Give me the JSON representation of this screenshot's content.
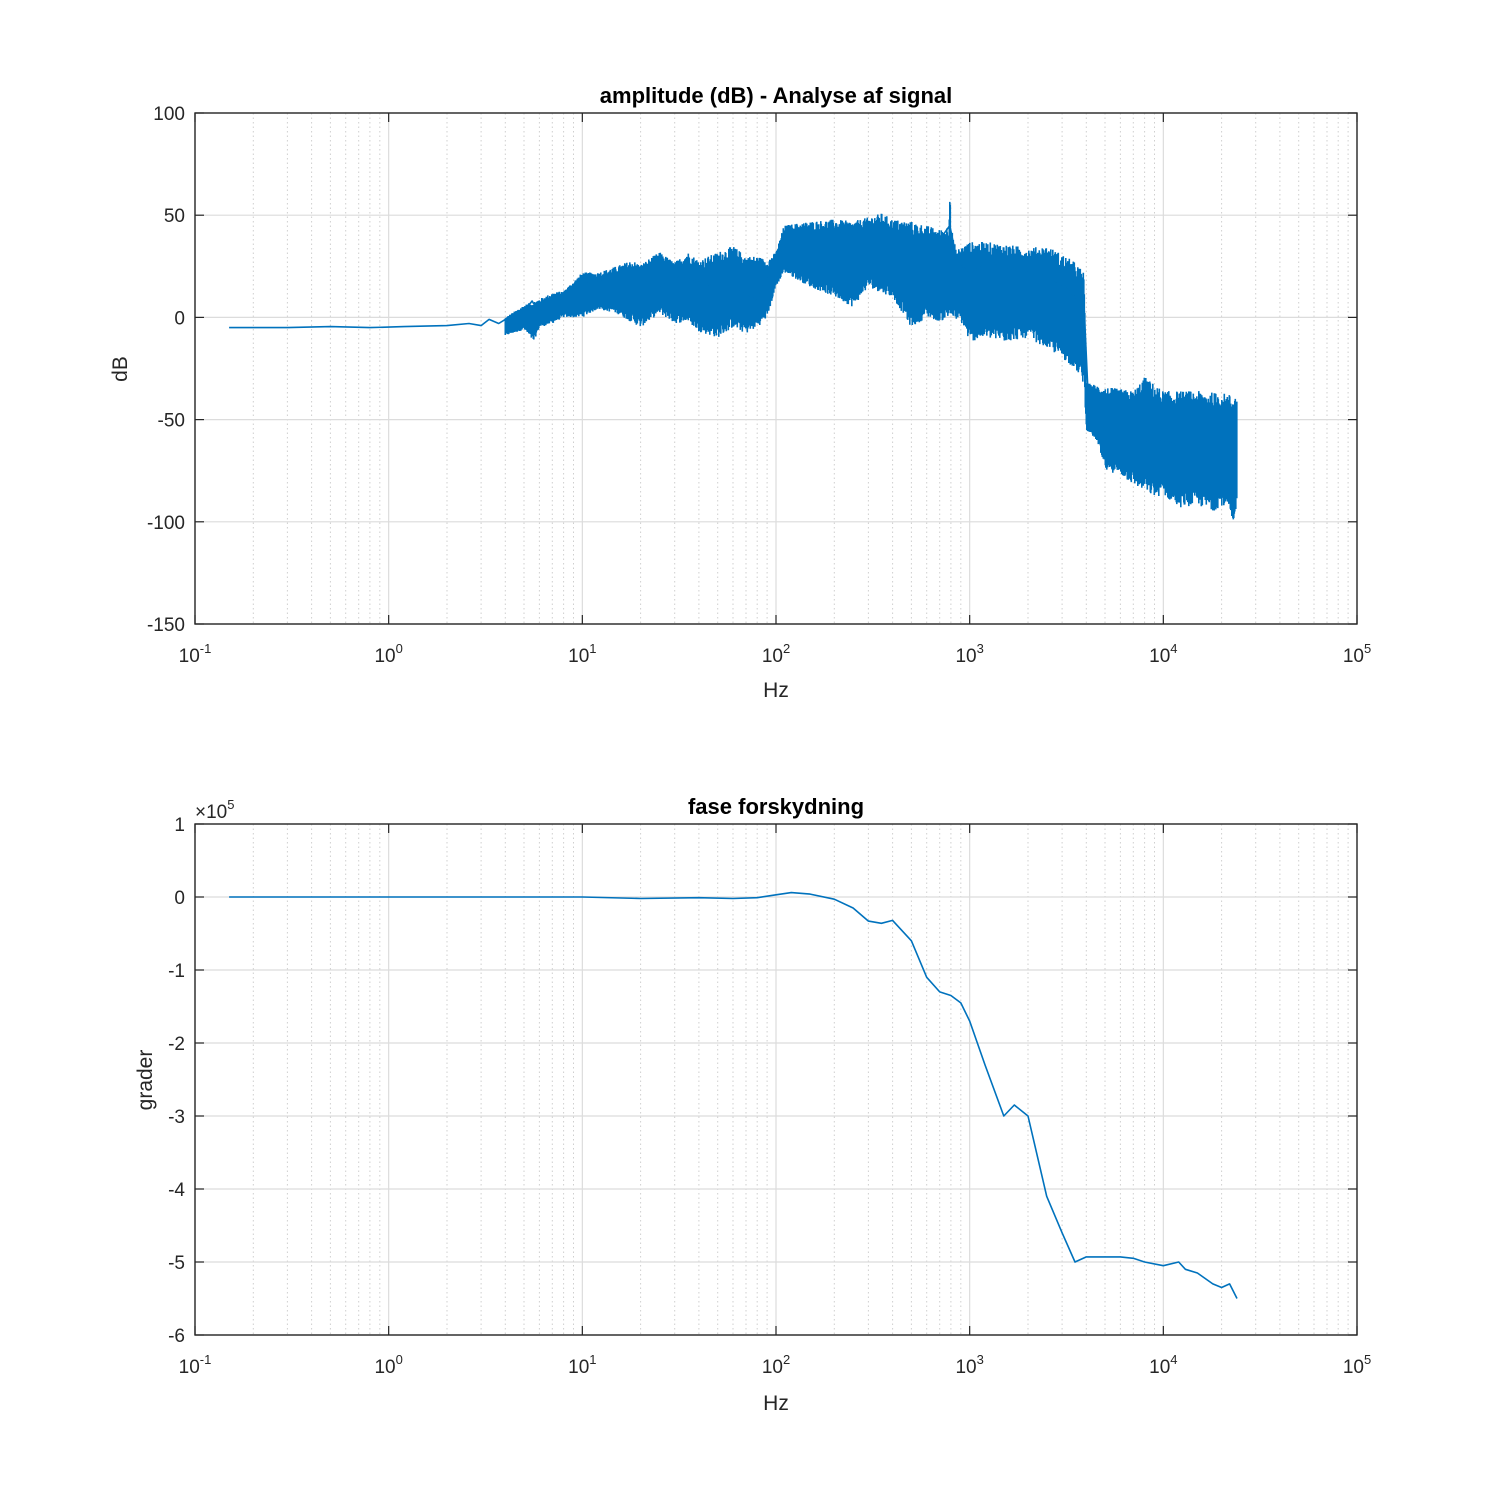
{
  "chart_data": [
    {
      "type": "line",
      "title": "amplitude (dB) - Analyse af signal",
      "xlabel": "Hz",
      "ylabel": "dB",
      "xscale": "log",
      "xlim": [
        0.1,
        100000
      ],
      "ylim": [
        -150,
        100
      ],
      "grid": true,
      "x_ticks": [
        {
          "base": "10",
          "exp": "-1"
        },
        {
          "base": "10",
          "exp": "0"
        },
        {
          "base": "10",
          "exp": "1"
        },
        {
          "base": "10",
          "exp": "2"
        },
        {
          "base": "10",
          "exp": "3"
        },
        {
          "base": "10",
          "exp": "4"
        },
        {
          "base": "10",
          "exp": "5"
        }
      ],
      "y_ticks": [
        "100",
        "50",
        "0",
        "-50",
        "-100",
        "-150"
      ],
      "y_tick_values": [
        100,
        50,
        0,
        -50,
        -100,
        -150
      ],
      "series": [
        {
          "color": "#0072bd",
          "points": [
            [
              0.15,
              -5
            ],
            [
              0.3,
              -5
            ],
            [
              0.5,
              -4.5
            ],
            [
              0.8,
              -5
            ],
            [
              1.2,
              -4.5
            ],
            [
              2.0,
              -4
            ],
            [
              2.6,
              -3
            ],
            [
              3.0,
              -4
            ],
            [
              3.3,
              -1
            ],
            [
              3.7,
              -3
            ],
            [
              4.0,
              -1
            ],
            [
              4.3,
              -7
            ],
            [
              4.6,
              -2
            ],
            [
              5.0,
              3
            ],
            [
              5.5,
              8
            ],
            [
              6.0,
              2
            ],
            [
              6.5,
              9
            ],
            [
              7.5,
              10
            ],
            [
              8.5,
              14
            ],
            [
              10,
              16
            ],
            [
              12,
              18
            ],
            [
              15,
              20
            ],
            [
              20,
              20
            ],
            [
              25,
              14
            ],
            [
              30,
              20
            ],
            [
              40,
              18
            ],
            [
              50,
              14
            ],
            [
              60,
              15
            ],
            [
              70,
              12
            ],
            [
              80,
              8
            ],
            [
              90,
              20
            ],
            [
              100,
              30
            ],
            [
              120,
              38
            ],
            [
              150,
              42
            ],
            [
              200,
              42
            ],
            [
              250,
              40
            ],
            [
              300,
              44
            ],
            [
              350,
              46
            ],
            [
              400,
              42
            ],
            [
              500,
              40
            ],
            [
              600,
              40
            ],
            [
              700,
              38
            ],
            [
              790,
              45
            ],
            [
              850,
              30
            ],
            [
              1000,
              20
            ],
            [
              1200,
              28
            ],
            [
              1500,
              25
            ],
            [
              2000,
              22
            ],
            [
              2500,
              20
            ],
            [
              3000,
              16
            ],
            [
              3500,
              10
            ],
            [
              3900,
              5
            ],
            [
              4100,
              -40
            ],
            [
              4500,
              -50
            ],
            [
              5000,
              -55
            ],
            [
              6000,
              -58
            ],
            [
              7000,
              -58
            ],
            [
              8000,
              -60
            ],
            [
              9000,
              -62
            ],
            [
              10000,
              -60
            ],
            [
              12000,
              -63
            ],
            [
              15000,
              -65
            ],
            [
              18000,
              -66
            ],
            [
              22000,
              -65
            ],
            [
              24000,
              -68
            ]
          ],
          "envelope_upper": [
            [
              4.0,
              0
            ],
            [
              5.0,
              6
            ],
            [
              6.0,
              9
            ],
            [
              7.0,
              12
            ],
            [
              8.0,
              13
            ],
            [
              10,
              22
            ],
            [
              12,
              22
            ],
            [
              15,
              25
            ],
            [
              18,
              28
            ],
            [
              20,
              26
            ],
            [
              25,
              32
            ],
            [
              30,
              27
            ],
            [
              35,
              32
            ],
            [
              40,
              28
            ],
            [
              50,
              32
            ],
            [
              60,
              35
            ],
            [
              70,
              30
            ],
            [
              80,
              30
            ],
            [
              90,
              28
            ],
            [
              100,
              32
            ],
            [
              110,
              45
            ],
            [
              150,
              47
            ],
            [
              200,
              48
            ],
            [
              250,
              47
            ],
            [
              300,
              49
            ],
            [
              350,
              51
            ],
            [
              400,
              48
            ],
            [
              500,
              47
            ],
            [
              600,
              45
            ],
            [
              700,
              43
            ],
            [
              780,
              45
            ],
            [
              790,
              68
            ],
            [
              800,
              45
            ],
            [
              850,
              33
            ],
            [
              1000,
              37
            ],
            [
              1200,
              37
            ],
            [
              1500,
              36
            ],
            [
              2000,
              34
            ],
            [
              2500,
              35
            ],
            [
              3000,
              31
            ],
            [
              3500,
              27
            ],
            [
              3900,
              22
            ],
            [
              4000,
              -32
            ],
            [
              5000,
              -34
            ],
            [
              6000,
              -35
            ],
            [
              7000,
              -36
            ],
            [
              8000,
              -29
            ],
            [
              10000,
              -36
            ],
            [
              15000,
              -36
            ],
            [
              20000,
              -37
            ],
            [
              24000,
              -38
            ]
          ],
          "envelope_lower": [
            [
              4.0,
              -9
            ],
            [
              5.0,
              -6
            ],
            [
              5.6,
              -12
            ],
            [
              6.0,
              -5
            ],
            [
              7.0,
              -3
            ],
            [
              8.0,
              0
            ],
            [
              10,
              0
            ],
            [
              12,
              4
            ],
            [
              15,
              2
            ],
            [
              20,
              -5
            ],
            [
              25,
              2
            ],
            [
              30,
              -3
            ],
            [
              35,
              -2
            ],
            [
              40,
              -7
            ],
            [
              50,
              -10
            ],
            [
              60,
              -5
            ],
            [
              70,
              -8
            ],
            [
              80,
              -5
            ],
            [
              90,
              0
            ],
            [
              100,
              15
            ],
            [
              110,
              22
            ],
            [
              150,
              15
            ],
            [
              200,
              10
            ],
            [
              250,
              5
            ],
            [
              300,
              15
            ],
            [
              350,
              12
            ],
            [
              400,
              10
            ],
            [
              500,
              -5
            ],
            [
              600,
              0
            ],
            [
              700,
              -2
            ],
            [
              800,
              0
            ],
            [
              900,
              -2
            ],
            [
              1000,
              -12
            ],
            [
              1200,
              -10
            ],
            [
              1500,
              -12
            ],
            [
              2000,
              -10
            ],
            [
              2500,
              -15
            ],
            [
              3000,
              -20
            ],
            [
              3500,
              -25
            ],
            [
              3900,
              -33
            ],
            [
              4000,
              -55
            ],
            [
              4500,
              -60
            ],
            [
              5000,
              -75
            ],
            [
              6000,
              -77
            ],
            [
              7000,
              -82
            ],
            [
              8000,
              -85
            ],
            [
              9000,
              -88
            ],
            [
              10000,
              -87
            ],
            [
              12000,
              -93
            ],
            [
              15000,
              -92
            ],
            [
              18000,
              -95
            ],
            [
              20000,
              -92
            ],
            [
              22000,
              -95
            ],
            [
              23000,
              -107
            ],
            [
              24000,
              -88
            ]
          ]
        }
      ]
    },
    {
      "type": "line",
      "title": "fase forskydning",
      "xlabel": "Hz",
      "ylabel": "grader",
      "xscale": "log",
      "xlim": [
        0.1,
        100000
      ],
      "ylim": [
        -600000,
        100000
      ],
      "grid": true,
      "y_multiplier": {
        "base": "×10",
        "exp": "5"
      },
      "x_ticks": [
        {
          "base": "10",
          "exp": "-1"
        },
        {
          "base": "10",
          "exp": "0"
        },
        {
          "base": "10",
          "exp": "1"
        },
        {
          "base": "10",
          "exp": "2"
        },
        {
          "base": "10",
          "exp": "3"
        },
        {
          "base": "10",
          "exp": "4"
        },
        {
          "base": "10",
          "exp": "5"
        }
      ],
      "y_ticks": [
        "1",
        "0",
        "-1",
        "-2",
        "-3",
        "-4",
        "-5",
        "-6"
      ],
      "y_tick_values": [
        100000,
        0,
        -100000,
        -200000,
        -300000,
        -400000,
        -500000,
        -600000
      ],
      "series": [
        {
          "color": "#0072bd",
          "points": [
            [
              0.15,
              0
            ],
            [
              1,
              0
            ],
            [
              5,
              0
            ],
            [
              10,
              0
            ],
            [
              20,
              -2000
            ],
            [
              40,
              -1000
            ],
            [
              60,
              -2000
            ],
            [
              80,
              -1000
            ],
            [
              100,
              3000
            ],
            [
              120,
              6000
            ],
            [
              150,
              4000
            ],
            [
              200,
              -3000
            ],
            [
              250,
              -15000
            ],
            [
              300,
              -33000
            ],
            [
              350,
              -36000
            ],
            [
              400,
              -32000
            ],
            [
              500,
              -60000
            ],
            [
              600,
              -110000
            ],
            [
              700,
              -130000
            ],
            [
              800,
              -135000
            ],
            [
              900,
              -145000
            ],
            [
              1000,
              -170000
            ],
            [
              1200,
              -230000
            ],
            [
              1500,
              -300000
            ],
            [
              1700,
              -285000
            ],
            [
              2000,
              -300000
            ],
            [
              2500,
              -410000
            ],
            [
              3000,
              -460000
            ],
            [
              3500,
              -500000
            ],
            [
              4000,
              -493000
            ],
            [
              5000,
              -493000
            ],
            [
              6000,
              -493000
            ],
            [
              7000,
              -495000
            ],
            [
              8000,
              -500000
            ],
            [
              10000,
              -505000
            ],
            [
              12000,
              -500000
            ],
            [
              13000,
              -510000
            ],
            [
              15000,
              -515000
            ],
            [
              18000,
              -530000
            ],
            [
              20000,
              -535000
            ],
            [
              22000,
              -530000
            ],
            [
              24000,
              -550000
            ]
          ]
        }
      ]
    }
  ]
}
